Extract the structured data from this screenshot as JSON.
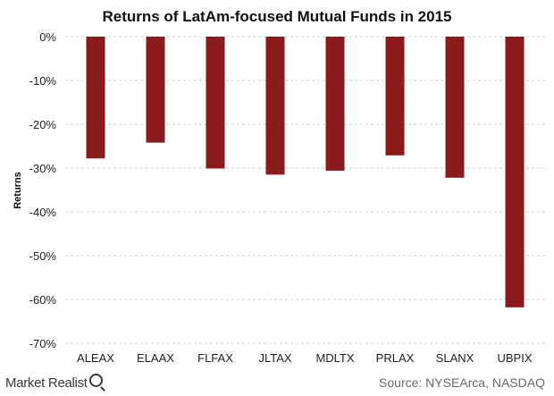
{
  "chart_data": {
    "type": "bar",
    "title": "Returns of LatAm-focused Mutual Funds in 2015",
    "xlabel": "",
    "ylabel": "Returns",
    "categories": [
      "ALEAX",
      "ELAAX",
      "FLFAX",
      "JLTAX",
      "MDLTX",
      "PRLAX",
      "SLANX",
      "UBPIX"
    ],
    "values": [
      -27.8,
      -24.2,
      -30.1,
      -31.5,
      -30.6,
      -27.1,
      -32.2,
      -61.8
    ],
    "ylim": [
      -70,
      0
    ],
    "yticks": [
      0,
      -10,
      -20,
      -30,
      -40,
      -50,
      -60,
      -70
    ],
    "ytick_labels": [
      "0%",
      "-10%",
      "-20%",
      "-30%",
      "-40%",
      "-50%",
      "-60%",
      "-70%"
    ],
    "grid": true,
    "bar_color": "#8b1a1d"
  },
  "footer": {
    "brand": "Market Realist",
    "source": "Source: NYSEArca, NASDAQ"
  }
}
